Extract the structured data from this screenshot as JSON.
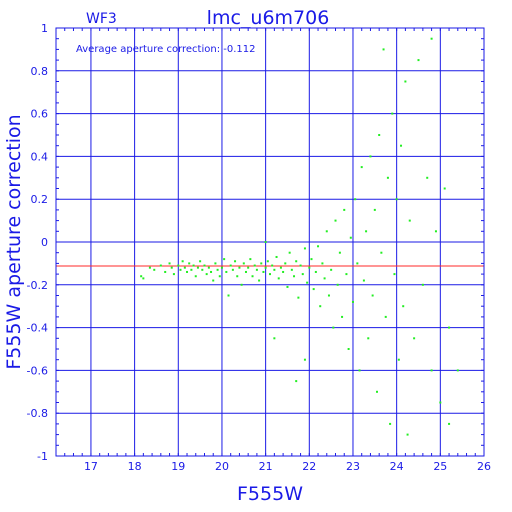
{
  "chart_data": {
    "type": "scatter",
    "title": "lmc_u6m706",
    "subtitle": "WF3",
    "annotation": "Average aperture correction: -0.112",
    "xlabel": "F555W",
    "ylabel": "F555W aperture correction",
    "xlim": [
      16.2,
      26
    ],
    "ylim": [
      -1,
      1
    ],
    "x_ticks": [
      "17",
      "18",
      "19",
      "20",
      "21",
      "22",
      "23",
      "24",
      "25",
      "26"
    ],
    "y_ticks": [
      "1",
      "0.8",
      "0.6",
      "0.4",
      "0.2",
      "0",
      "-0.2",
      "-0.4",
      "-0.6",
      "-0.8",
      "-1"
    ],
    "grid": true,
    "reference_line_y": -0.112,
    "colors": {
      "axes": "#1a1ae6",
      "points": "#22ee22",
      "reference_line": "#ff2a2a"
    },
    "series": [
      {
        "points": [
          [
            18.15,
            -0.16
          ],
          [
            18.2,
            -0.17
          ],
          [
            18.35,
            -0.12
          ],
          [
            18.45,
            -0.13
          ],
          [
            18.6,
            -0.11
          ],
          [
            18.7,
            -0.14
          ],
          [
            18.8,
            -0.1
          ],
          [
            18.85,
            -0.12
          ],
          [
            18.9,
            -0.15
          ],
          [
            19.0,
            -0.11
          ],
          [
            19.05,
            -0.13
          ],
          [
            19.1,
            -0.09
          ],
          [
            19.15,
            -0.12
          ],
          [
            19.2,
            -0.14
          ],
          [
            19.25,
            -0.1
          ],
          [
            19.3,
            -0.13
          ],
          [
            19.35,
            -0.11
          ],
          [
            19.4,
            -0.16
          ],
          [
            19.45,
            -0.12
          ],
          [
            19.5,
            -0.09
          ],
          [
            19.55,
            -0.13
          ],
          [
            19.6,
            -0.11
          ],
          [
            19.65,
            -0.15
          ],
          [
            19.7,
            -0.12
          ],
          [
            19.75,
            -0.14
          ],
          [
            19.8,
            -0.18
          ],
          [
            19.85,
            -0.1
          ],
          [
            19.9,
            -0.13
          ],
          [
            19.95,
            -0.16
          ],
          [
            20.0,
            -0.12
          ],
          [
            20.05,
            -0.08
          ],
          [
            20.1,
            -0.14
          ],
          [
            20.15,
            -0.25
          ],
          [
            20.2,
            -0.11
          ],
          [
            20.25,
            -0.13
          ],
          [
            20.3,
            -0.09
          ],
          [
            20.35,
            -0.16
          ],
          [
            20.4,
            -0.12
          ],
          [
            20.45,
            -0.2
          ],
          [
            20.5,
            -0.1
          ],
          [
            20.55,
            -0.14
          ],
          [
            20.6,
            -0.12
          ],
          [
            20.65,
            -0.08
          ],
          [
            20.7,
            -0.16
          ],
          [
            20.75,
            -0.11
          ],
          [
            20.8,
            -0.13
          ],
          [
            20.85,
            -0.18
          ],
          [
            20.9,
            -0.1
          ],
          [
            20.95,
            -0.14
          ],
          [
            21.0,
            -0.12
          ],
          [
            21.0,
            0.0
          ],
          [
            21.05,
            -0.09
          ],
          [
            21.1,
            -0.15
          ],
          [
            21.15,
            -0.11
          ],
          [
            21.2,
            -0.13
          ],
          [
            21.2,
            -0.45
          ],
          [
            21.25,
            -0.07
          ],
          [
            21.3,
            -0.17
          ],
          [
            21.35,
            -0.12
          ],
          [
            21.4,
            -0.14
          ],
          [
            21.45,
            -0.1
          ],
          [
            21.5,
            -0.21
          ],
          [
            21.55,
            -0.05
          ],
          [
            21.6,
            -0.13
          ],
          [
            21.65,
            -0.16
          ],
          [
            21.7,
            -0.09
          ],
          [
            21.75,
            -0.26
          ],
          [
            21.7,
            -0.65
          ],
          [
            21.8,
            -0.11
          ],
          [
            21.85,
            -0.15
          ],
          [
            21.9,
            -0.03
          ],
          [
            21.95,
            -0.19
          ],
          [
            21.9,
            -0.55
          ],
          [
            22.0,
            -0.12
          ],
          [
            22.05,
            -0.08
          ],
          [
            22.1,
            -0.22
          ],
          [
            22.15,
            -0.14
          ],
          [
            22.2,
            -0.02
          ],
          [
            22.25,
            -0.3
          ],
          [
            22.3,
            -0.1
          ],
          [
            22.35,
            -0.17
          ],
          [
            22.4,
            0.05
          ],
          [
            22.45,
            -0.25
          ],
          [
            22.5,
            -0.13
          ],
          [
            22.55,
            -0.4
          ],
          [
            22.6,
            0.1
          ],
          [
            22.65,
            -0.2
          ],
          [
            22.7,
            -0.05
          ],
          [
            22.75,
            -0.35
          ],
          [
            22.8,
            0.15
          ],
          [
            22.85,
            -0.15
          ],
          [
            22.9,
            -0.5
          ],
          [
            22.95,
            0.02
          ],
          [
            23.0,
            -0.28
          ],
          [
            23.05,
            0.2
          ],
          [
            23.1,
            -0.1
          ],
          [
            23.15,
            -0.6
          ],
          [
            23.2,
            0.35
          ],
          [
            23.25,
            -0.18
          ],
          [
            23.3,
            0.05
          ],
          [
            23.35,
            -0.45
          ],
          [
            23.4,
            0.4
          ],
          [
            23.45,
            -0.25
          ],
          [
            23.5,
            0.15
          ],
          [
            23.55,
            -0.7
          ],
          [
            23.6,
            0.5
          ],
          [
            23.65,
            -0.05
          ],
          [
            23.7,
            0.9
          ],
          [
            23.75,
            -0.35
          ],
          [
            23.8,
            0.3
          ],
          [
            23.85,
            -0.85
          ],
          [
            23.9,
            0.6
          ],
          [
            23.95,
            -0.15
          ],
          [
            24.0,
            0.2
          ],
          [
            24.05,
            -0.55
          ],
          [
            24.1,
            0.45
          ],
          [
            24.15,
            -0.3
          ],
          [
            24.2,
            0.75
          ],
          [
            24.25,
            -0.9
          ],
          [
            24.3,
            0.1
          ],
          [
            24.4,
            -0.45
          ],
          [
            24.5,
            0.85
          ],
          [
            24.6,
            -0.2
          ],
          [
            24.7,
            0.3
          ],
          [
            24.8,
            -0.6
          ],
          [
            24.9,
            0.05
          ],
          [
            25.0,
            -0.75
          ],
          [
            25.1,
            0.25
          ],
          [
            25.2,
            -0.4
          ],
          [
            25.4,
            -0.6
          ],
          [
            24.8,
            0.95
          ],
          [
            25.2,
            -0.85
          ]
        ]
      }
    ]
  }
}
